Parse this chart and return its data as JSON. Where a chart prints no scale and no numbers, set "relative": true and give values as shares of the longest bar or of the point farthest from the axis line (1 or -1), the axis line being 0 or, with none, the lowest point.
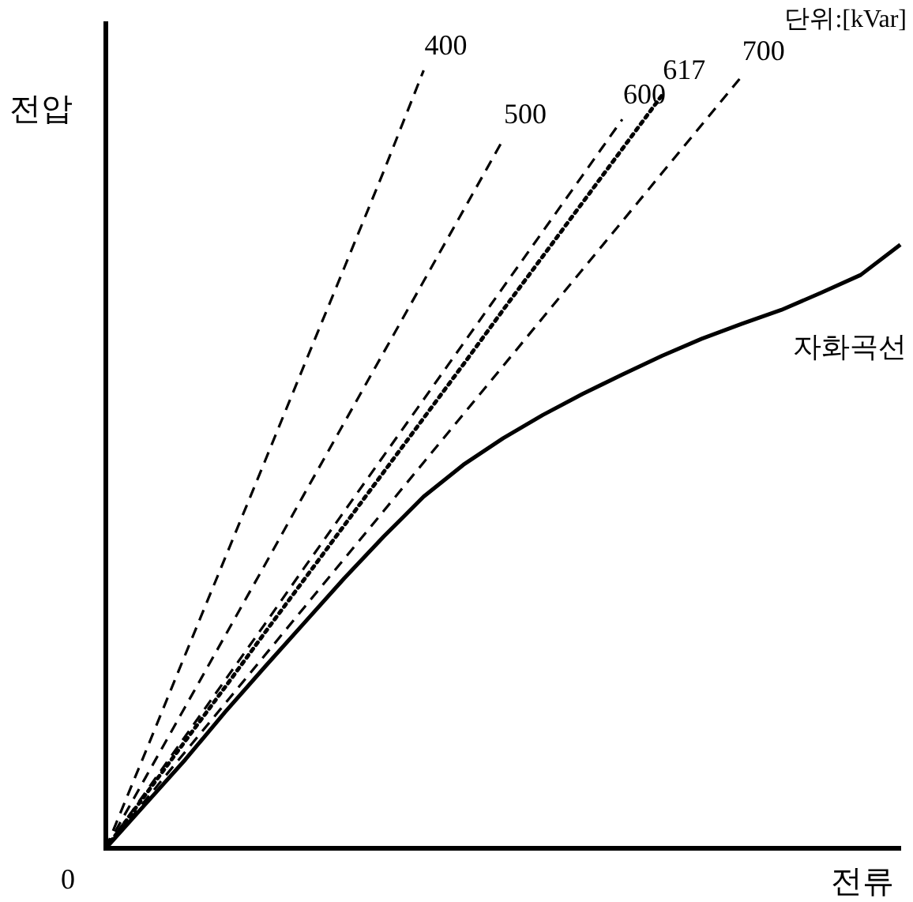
{
  "chart_data": {
    "type": "line",
    "relative": true,
    "xlabel": "전류",
    "ylabel": "전압",
    "grid": false,
    "marker": "none",
    "annotations": [
      "단위:[kVar]",
      "0"
    ],
    "categories": [
      null,
      null,
      null,
      null,
      null,
      null,
      null,
      null,
      null,
      null,
      null,
      null,
      null,
      null,
      null,
      null,
      null,
      null,
      null,
      null,
      null
    ],
    "series": [
      {
        "name": "400",
        "color": "#000000",
        "line_style": "dashed",
        "values": [
          0,
          0.124,
          0.249,
          0.373,
          0.497,
          0.622,
          0.746,
          0.871,
          1,
          null,
          null,
          null,
          null,
          null,
          null,
          null,
          null,
          null,
          null,
          null,
          null
        ]
      },
      {
        "name": "500",
        "color": "#000000",
        "line_style": "dashed",
        "values": [
          0,
          0.091,
          0.182,
          0.273,
          0.364,
          0.456,
          0.547,
          0.638,
          0.729,
          0.82,
          0.911,
          null,
          null,
          null,
          null,
          null,
          null,
          null,
          null,
          null,
          null
        ]
      },
      {
        "name": "600",
        "color": "#000000",
        "line_style": "dashed",
        "values": [
          0,
          0.072,
          0.144,
          0.216,
          0.288,
          0.361,
          0.433,
          0.505,
          0.577,
          0.649,
          0.721,
          0.793,
          0.865,
          0.937,
          null,
          null,
          null,
          null,
          null,
          null,
          null
        ]
      },
      {
        "name": "617",
        "color": "#000000",
        "line_style": "dotted",
        "values": [
          0,
          0.069,
          0.138,
          0.207,
          0.277,
          0.346,
          0.415,
          0.484,
          0.553,
          0.622,
          0.692,
          0.761,
          0.83,
          0.899,
          0.968,
          null,
          null,
          null,
          null,
          null,
          null
        ]
      },
      {
        "name": "700",
        "color": "#000000",
        "line_style": "dashed",
        "values": [
          0,
          0.062,
          0.124,
          0.186,
          0.248,
          0.31,
          0.372,
          0.434,
          0.496,
          0.558,
          0.62,
          0.682,
          0.744,
          0.806,
          0.868,
          0.93,
          0.992,
          null,
          null,
          null,
          null
        ]
      },
      {
        "name": "자화곡선",
        "color": "#000000",
        "line_style": "solid",
        "values": [
          0,
          0.057,
          0.114,
          0.175,
          0.233,
          0.29,
          0.347,
          0.401,
          0.452,
          0.493,
          0.527,
          0.557,
          0.584,
          0.609,
          0.633,
          0.655,
          0.674,
          0.692,
          0.714,
          0.737,
          0.776
        ]
      }
    ]
  }
}
